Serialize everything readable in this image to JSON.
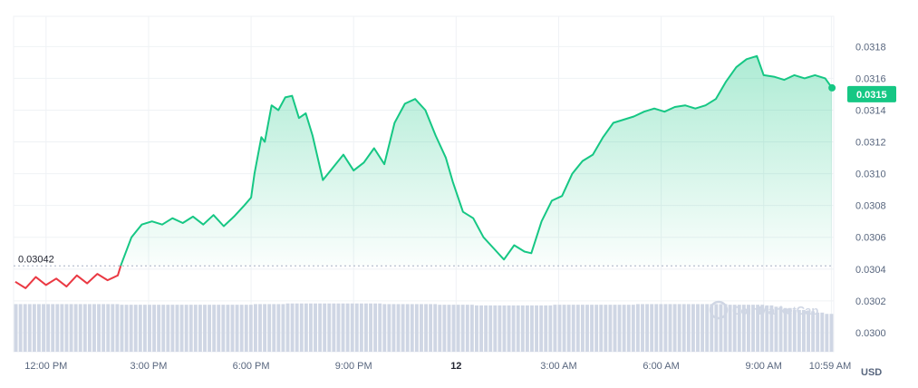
{
  "chart_data": {
    "type": "line",
    "currency": "USD",
    "reference_price": 0.03042,
    "reference_label": "0.03042",
    "current_price": 0.0315,
    "current_label": "0.0315",
    "ylim": [
      0.02988,
      0.03199
    ],
    "y_ticks": [
      "0.0300",
      "0.0302",
      "0.0304",
      "0.0306",
      "0.0308",
      "0.0310",
      "0.0312",
      "0.0314",
      "0.0316",
      "0.0318"
    ],
    "x_ticks": [
      {
        "label": "12:00 PM",
        "hours": 0
      },
      {
        "label": "3:00 PM",
        "hours": 3
      },
      {
        "label": "6:00 PM",
        "hours": 6
      },
      {
        "label": "9:00 PM",
        "hours": 9
      },
      {
        "label": "12",
        "hours": 12,
        "bold": true
      },
      {
        "label": "3:00 AM",
        "hours": 15
      },
      {
        "label": "6:00 AM",
        "hours": 18
      },
      {
        "label": "9:00 AM",
        "hours": 21
      },
      {
        "label": "10:59 AM",
        "hours": 22.98
      }
    ],
    "x": [
      -0.9,
      -0.6,
      -0.3,
      0.0,
      0.3,
      0.6,
      0.9,
      1.2,
      1.5,
      1.8,
      2.1,
      2.2,
      2.5,
      2.8,
      3.1,
      3.4,
      3.7,
      4.0,
      4.3,
      4.6,
      4.9,
      5.2,
      5.5,
      5.8,
      6.0,
      6.1,
      6.3,
      6.4,
      6.6,
      6.8,
      7.0,
      7.2,
      7.4,
      7.6,
      7.8,
      8.1,
      8.4,
      8.7,
      9.0,
      9.3,
      9.6,
      9.9,
      10.2,
      10.5,
      10.8,
      11.1,
      11.4,
      11.7,
      11.9,
      12.2,
      12.5,
      12.8,
      13.1,
      13.4,
      13.7,
      14.0,
      14.2,
      14.5,
      14.8,
      15.1,
      15.4,
      15.7,
      16.0,
      16.3,
      16.6,
      16.9,
      17.2,
      17.5,
      17.8,
      18.1,
      18.4,
      18.7,
      19.0,
      19.3,
      19.6,
      19.9,
      20.2,
      20.5,
      20.8,
      21.0,
      21.3,
      21.6,
      21.9,
      22.2,
      22.5,
      22.8,
      23.0
    ],
    "y": [
      0.03032,
      0.03028,
      0.03035,
      0.0303,
      0.03034,
      0.03029,
      0.03036,
      0.03031,
      0.03037,
      0.03033,
      0.03036,
      0.03043,
      0.0306,
      0.03068,
      0.0307,
      0.03068,
      0.03072,
      0.03069,
      0.03073,
      0.03068,
      0.03074,
      0.03067,
      0.03073,
      0.0308,
      0.03085,
      0.031,
      0.03123,
      0.0312,
      0.03143,
      0.0314,
      0.03148,
      0.03149,
      0.03135,
      0.03138,
      0.03124,
      0.03096,
      0.03104,
      0.03112,
      0.03102,
      0.03107,
      0.03116,
      0.03106,
      0.03132,
      0.03144,
      0.03147,
      0.0314,
      0.03124,
      0.0311,
      0.03095,
      0.03076,
      0.03072,
      0.0306,
      0.03053,
      0.03046,
      0.03055,
      0.03051,
      0.0305,
      0.0307,
      0.03083,
      0.03086,
      0.031,
      0.03108,
      0.03112,
      0.03123,
      0.03132,
      0.03134,
      0.03136,
      0.03139,
      0.03141,
      0.03139,
      0.03142,
      0.03143,
      0.03141,
      0.03143,
      0.03147,
      0.03158,
      0.03167,
      0.03172,
      0.03174,
      0.03162,
      0.03161,
      0.03159,
      0.03162,
      0.0316,
      0.03162,
      0.0316,
      0.03154
    ],
    "volume": [
      0.73,
      0.73,
      0.73,
      0.73,
      0.73,
      0.73,
      0.73,
      0.73,
      0.73,
      0.73,
      0.73,
      0.72,
      0.72,
      0.72,
      0.72,
      0.72,
      0.72,
      0.72,
      0.72,
      0.72,
      0.72,
      0.72,
      0.72,
      0.72,
      0.72,
      0.72,
      0.73,
      0.73,
      0.73,
      0.73,
      0.73,
      0.74,
      0.74,
      0.74,
      0.74,
      0.74,
      0.74,
      0.74,
      0.74,
      0.74,
      0.74,
      0.74,
      0.73,
      0.73,
      0.73,
      0.73,
      0.73,
      0.72,
      0.72,
      0.72,
      0.72,
      0.71,
      0.71,
      0.71,
      0.71,
      0.71,
      0.71,
      0.71,
      0.71,
      0.72,
      0.72,
      0.72,
      0.72,
      0.72,
      0.72,
      0.72,
      0.72,
      0.73,
      0.73,
      0.73,
      0.73,
      0.73,
      0.73,
      0.73,
      0.73,
      0.73,
      0.72,
      0.72,
      0.72,
      0.72,
      0.71,
      0.69,
      0.67,
      0.64,
      0.62,
      0.6,
      0.58
    ],
    "colors": {
      "up": "#16c784",
      "down": "#ea3943",
      "grid": "#eff2f5",
      "volume": "#cfd6e4",
      "ref": "#a6b0c3"
    }
  },
  "watermark": "CoinMarketCap"
}
